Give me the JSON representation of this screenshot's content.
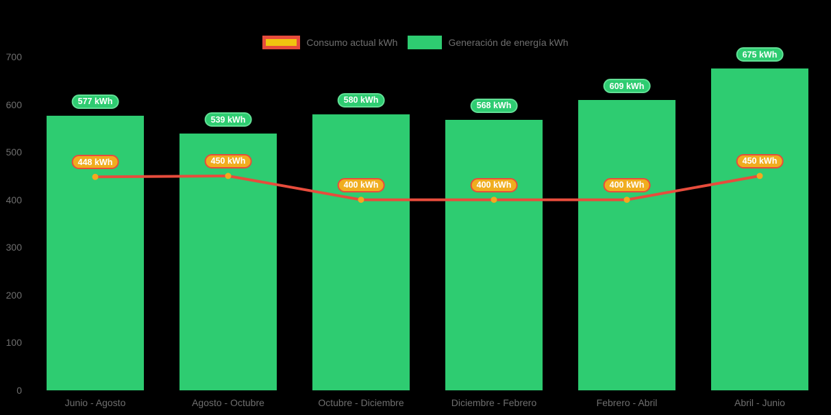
{
  "theme": {
    "background": "#000000",
    "axis-text": "#6f6f6f",
    "legend-text": "#6f6f6f",
    "pill-text": "#ffffff"
  },
  "chart_data": {
    "type": "bar+line",
    "title": "",
    "xlabel": "",
    "ylabel": "",
    "unit": "kWh",
    "categories": [
      "Junio - Agosto",
      "Agosto - Octubre",
      "Octubre - Diciembre",
      "Diciembre - Febrero",
      "Febrero - Abril",
      "Abril - Junio"
    ],
    "series": [
      {
        "name": "Consumo actual kWh",
        "type": "line",
        "values": [
          448,
          450,
          400,
          400,
          400,
          450
        ],
        "labels": [
          "448 kWh",
          "450 kWh",
          "400 kWh",
          "400 kWh",
          "400 kWh",
          "450 kWh"
        ],
        "color": "#e74c3c",
        "point_color": "#f5a81e",
        "swatch_fill": "#f1c40f",
        "label_bg": "#f0ad1f",
        "label_border": "#e74c3c",
        "line_width": 4,
        "point_radius": 4.5
      },
      {
        "name": "Generación de energía kWh",
        "type": "bar",
        "values": [
          577,
          539,
          580,
          568,
          609,
          675
        ],
        "labels": [
          "577 kWh",
          "539 kWh",
          "580 kWh",
          "568 kWh",
          "609 kWh",
          "675 kWh"
        ],
        "color": "#2ecc71",
        "label_bg": "#2ecc71",
        "label_border": "#62e096"
      }
    ],
    "ylim": [
      0,
      700
    ],
    "y_ticks": [
      0,
      100,
      200,
      300,
      400,
      500,
      600,
      700
    ],
    "grid": false,
    "legend_position": "top"
  }
}
